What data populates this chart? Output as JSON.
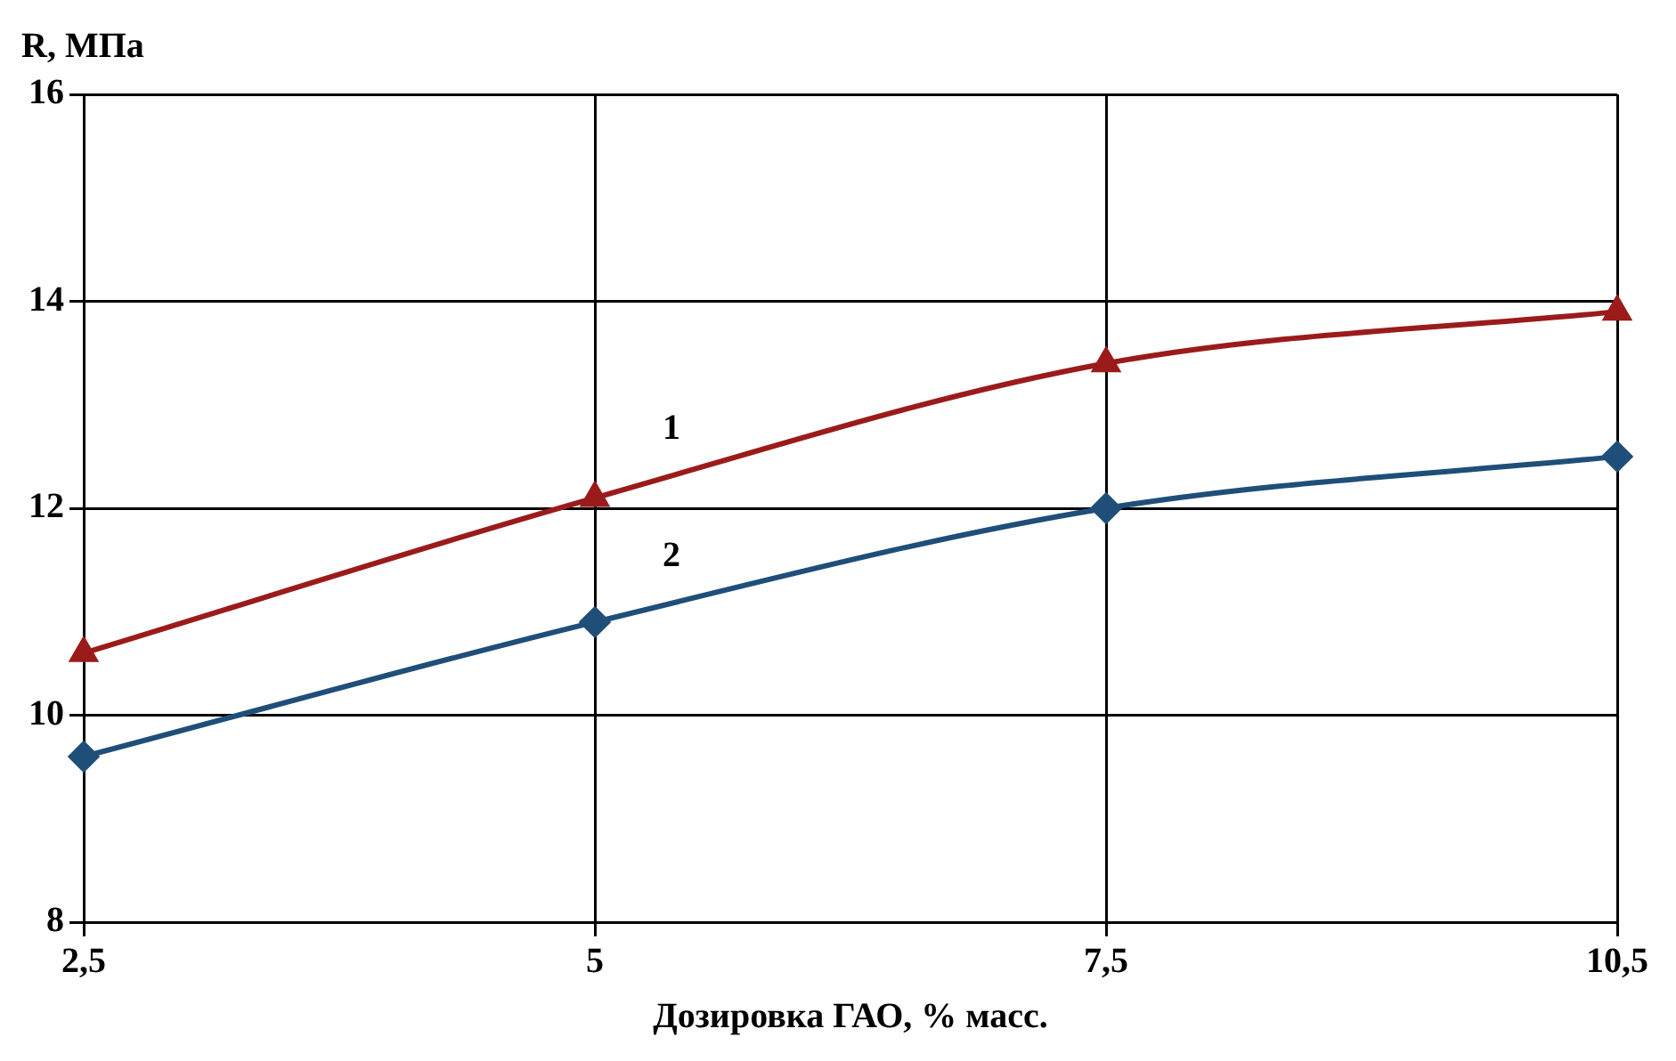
{
  "chart_data": {
    "type": "line",
    "xlabel": "Дозировка ГАО, % масс.",
    "ylabel": "R, МПа",
    "categories": [
      "2,5",
      "5",
      "7,5",
      "10,5"
    ],
    "series": [
      {
        "name": "1",
        "color": "#9b1b1b",
        "marker": "triangle",
        "values": [
          10.6,
          12.1,
          13.4,
          13.9
        ]
      },
      {
        "name": "2",
        "color": "#1f4e79",
        "marker": "diamond",
        "values": [
          9.6,
          10.9,
          12.0,
          12.5
        ]
      }
    ],
    "ylim": [
      8,
      16
    ],
    "yticks": [
      8,
      10,
      12,
      14,
      16
    ],
    "grid": true,
    "legend": false
  }
}
